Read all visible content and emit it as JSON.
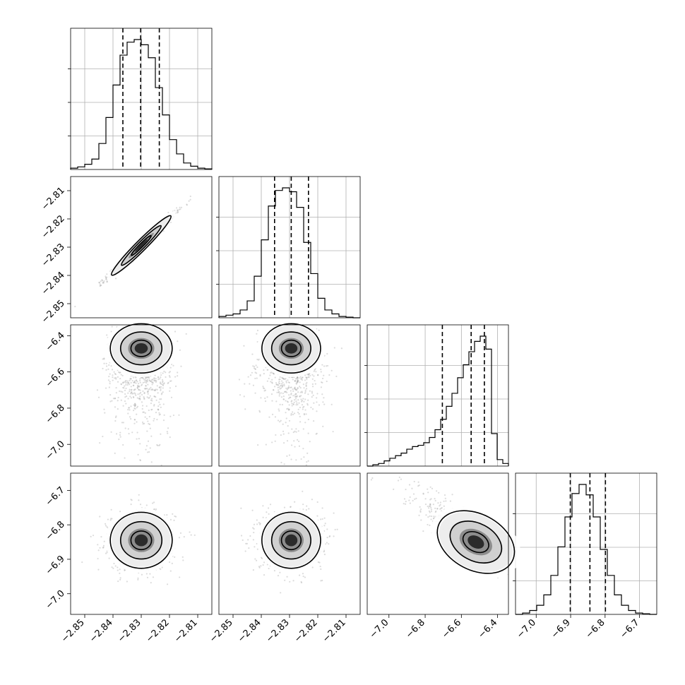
{
  "chart_data": {
    "type": "corner",
    "grid": true,
    "parameters": [
      {
        "range": [
          -2.855,
          -2.805
        ],
        "ticks": [
          -2.85,
          -2.84,
          -2.83,
          -2.82,
          -2.81
        ],
        "tick_labels": [
          "−2.85",
          "−2.84",
          "−2.83",
          "−2.82",
          "−2.81"
        ],
        "quantiles": [
          -2.8365,
          -2.8302,
          -2.8236
        ],
        "mean": -2.8302,
        "sd": 0.0058
      },
      {
        "range": [
          -2.855,
          -2.805
        ],
        "ticks": [
          -2.85,
          -2.84,
          -2.83,
          -2.82,
          -2.81
        ],
        "tick_labels": [
          "−2.85",
          "−2.84",
          "−2.83",
          "−2.82",
          "−2.81"
        ],
        "quantiles": [
          -2.8353,
          -2.8294,
          -2.8233
        ],
        "mean": -2.8294,
        "sd": 0.0055
      },
      {
        "range": [
          -7.12,
          -6.34
        ],
        "ticks": [
          -7.0,
          -6.8,
          -6.6,
          -6.4
        ],
        "tick_labels": [
          "−7.0",
          "−6.8",
          "−6.6",
          "−6.4"
        ],
        "quantiles": [
          -6.705,
          -6.546,
          -6.473
        ],
        "mode": -6.48
      },
      {
        "range": [
          -7.06,
          -6.65
        ],
        "ticks": [
          -7.0,
          -6.9,
          -6.8,
          -6.7
        ],
        "tick_labels": [
          "−7.0",
          "−6.9",
          "−6.8",
          "−6.7"
        ],
        "quantiles": [
          -6.901,
          -6.844,
          -6.799
        ],
        "mean": -6.845,
        "sd": 0.043
      }
    ],
    "marginals": [
      {
        "param": 0,
        "bins": [
          -2.855,
          -2.805
        ],
        "values": [
          0.01,
          0.02,
          0.04,
          0.08,
          0.2,
          0.4,
          0.65,
          0.88,
          0.98,
          1.0,
          0.96,
          0.86,
          0.63,
          0.42,
          0.23,
          0.12,
          0.05,
          0.025,
          0.01,
          0.005
        ]
      },
      {
        "param": 1,
        "bins": [
          -2.855,
          -2.805
        ],
        "values": [
          0.01,
          0.02,
          0.03,
          0.06,
          0.13,
          0.32,
          0.6,
          0.86,
          0.98,
          1.0,
          0.97,
          0.85,
          0.58,
          0.34,
          0.15,
          0.06,
          0.03,
          0.01,
          0.005,
          0.0
        ]
      },
      {
        "param": 2,
        "bins": [
          -7.12,
          -6.34
        ],
        "values": [
          0.0,
          0.01,
          0.02,
          0.04,
          0.06,
          0.08,
          0.1,
          0.13,
          0.15,
          0.16,
          0.18,
          0.22,
          0.28,
          0.36,
          0.46,
          0.56,
          0.68,
          0.78,
          0.88,
          0.96,
          1.0,
          0.9,
          0.25,
          0.05,
          0.02
        ]
      },
      {
        "param": 3,
        "bins": [
          -7.06,
          -6.65
        ],
        "values": [
          0.0,
          0.01,
          0.03,
          0.07,
          0.15,
          0.3,
          0.52,
          0.75,
          0.93,
          1.0,
          0.92,
          0.75,
          0.5,
          0.3,
          0.15,
          0.07,
          0.03,
          0.01,
          0.005,
          0.0
        ]
      }
    ],
    "pairs": [
      {
        "x": 0,
        "y": 1,
        "center": [
          -2.83,
          -2.8294
        ],
        "sd": [
          0.0058,
          0.0055
        ],
        "corr": 0.99
      },
      {
        "x": 0,
        "y": 2,
        "center": [
          -2.83,
          -6.53
        ],
        "sd": [
          0.0058,
          0.12
        ],
        "corr": 0.0,
        "skew": "tail-down"
      },
      {
        "x": 1,
        "y": 2,
        "center": [
          -2.8294,
          -6.53
        ],
        "sd": [
          0.0055,
          0.12
        ],
        "corr": 0.0,
        "skew": "tail-down"
      },
      {
        "x": 0,
        "y": 3,
        "center": [
          -2.83,
          -6.845
        ],
        "sd": [
          0.0058,
          0.043
        ],
        "corr": 0.0
      },
      {
        "x": 1,
        "y": 3,
        "center": [
          -2.8294,
          -6.845
        ],
        "sd": [
          0.0055,
          0.043
        ],
        "corr": 0.0
      },
      {
        "x": 2,
        "y": 3,
        "center": [
          -6.52,
          -6.85
        ],
        "sd": [
          0.12,
          0.043
        ],
        "corr": -0.85,
        "skew": "banana"
      }
    ]
  }
}
